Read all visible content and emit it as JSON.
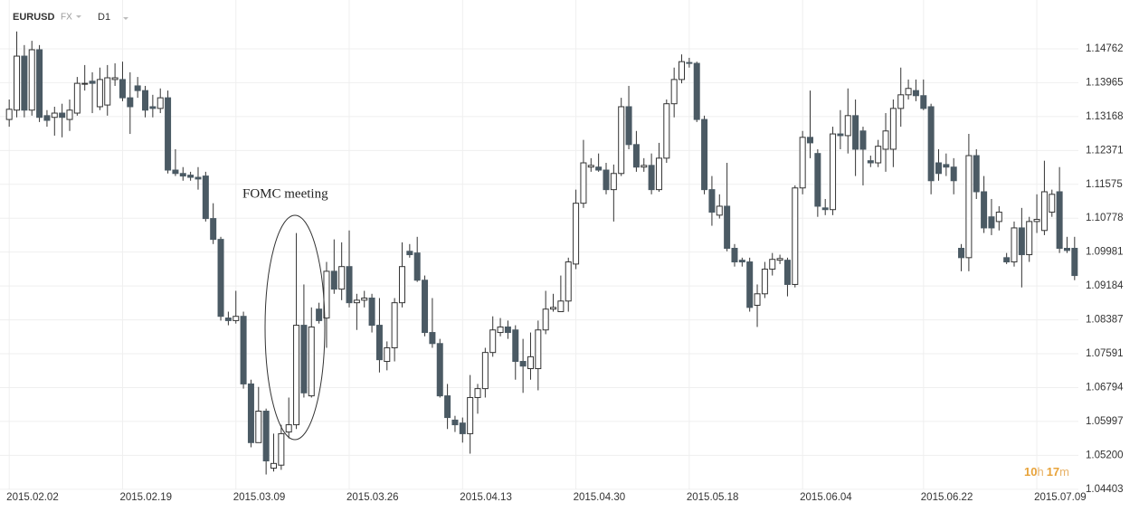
{
  "chart_data": {
    "type": "candlestick",
    "symbol": "EURUSD",
    "market": "FX",
    "timeframe": "D1",
    "annotation": "FOMC meeting",
    "countdown": [
      "10",
      "h",
      "17",
      "m"
    ],
    "up_color": "#ffffff",
    "down_color": "#4b5a64",
    "wick_color": "#333333",
    "grid": true,
    "ylim": [
      1.044,
      1.1591
    ],
    "yticks": [
      1.04403,
      {
        "value": 1.052,
        "label": "1.05200"
      },
      1.05997,
      1.06794,
      1.07591,
      1.08387,
      1.09184,
      1.09981,
      1.10778,
      1.11575,
      1.12371,
      1.13168,
      1.13965,
      1.14762
    ],
    "categories": [
      "2015.02.02",
      null,
      null,
      null,
      null,
      null,
      null,
      null,
      null,
      null,
      null,
      null,
      null,
      null,
      null,
      "2015.02.19",
      null,
      null,
      null,
      null,
      null,
      null,
      null,
      null,
      null,
      null,
      null,
      null,
      null,
      null,
      "2015.03.09",
      null,
      null,
      null,
      null,
      null,
      null,
      null,
      null,
      null,
      null,
      null,
      null,
      null,
      null,
      "2015.03.26",
      null,
      null,
      null,
      null,
      null,
      null,
      null,
      null,
      null,
      null,
      null,
      null,
      null,
      null,
      "2015.04.13",
      null,
      null,
      null,
      null,
      null,
      null,
      null,
      null,
      null,
      null,
      null,
      null,
      null,
      null,
      "2015.04.30",
      null,
      null,
      null,
      null,
      null,
      null,
      null,
      null,
      null,
      null,
      null,
      null,
      null,
      null,
      "2015.05.18",
      null,
      null,
      null,
      null,
      null,
      null,
      null,
      null,
      null,
      null,
      null,
      null,
      null,
      null,
      "2015.06.04",
      null,
      null,
      null,
      null,
      null,
      null,
      null,
      null,
      null,
      null,
      null,
      null,
      null,
      null,
      null,
      "2015.06.22",
      null,
      null,
      null,
      null,
      null,
      null,
      null,
      null,
      null,
      null,
      null,
      null,
      null,
      null,
      "2015.07.09",
      null,
      null,
      null,
      null,
      null
    ],
    "open": [
      1.131,
      1.1332,
      1.1459,
      1.1332,
      1.1474,
      1.1319,
      1.1315,
      1.1325,
      1.131,
      1.1325,
      1.1393,
      1.14,
      1.134,
      1.1344,
      1.1404,
      1.1404,
      1.1361,
      1.1389,
      1.1378,
      1.134,
      1.1336,
      1.1361,
      1.1191,
      1.1183,
      1.1179,
      1.1174,
      1.1177,
      1.1077,
      1.1028,
      1.0843,
      1.0837,
      1.0847,
      1.0688,
      1.055,
      1.0624,
      1.049,
      1.0497,
      1.0575,
      1.0592,
      1.0826,
      1.066,
      1.0864,
      1.0843,
      1.0953,
      1.0911,
      1.0964,
      1.0879,
      1.0885,
      1.089,
      1.0826,
      1.0741,
      1.0773,
      1.0879,
      1.1,
      1.0996,
      1.0932,
      1.0809,
      1.0783,
      1.066,
      1.0603,
      1.0596,
      1.0571,
      1.0656,
      1.0677,
      1.0762,
      1.0809,
      1.0822,
      1.0815,
      1.0741,
      1.0724,
      1.0724,
      1.0815,
      1.0864,
      1.0858,
      1.0883,
      1.097,
      1.1113,
      1.1198,
      1.1198,
      1.1191,
      1.1145,
      1.1183,
      1.134,
      1.1251,
      1.1198,
      1.1202,
      1.1145,
      1.1219,
      1.1347,
      1.1404,
      1.1444,
      1.1442,
      1.131,
      1.1145,
      1.1085,
      1.1106,
      1.1007,
      1.0979,
      1.0975,
      1.0873,
      1.09,
      1.0958,
      1.0979,
      1.0979,
      1.0922,
      1.1149,
      1.1268,
      1.123,
      1.1102,
      1.1098,
      1.1276,
      1.1272,
      1.1319,
      1.1283,
      1.1213,
      1.1208,
      1.124,
      1.124,
      1.1336,
      1.1368,
      1.1378,
      1.1366,
      1.134,
      1.1208,
      1.1204,
      1.1198,
      1.1007,
      1.0985,
      1.1225,
      1.114,
      1.1081,
      1.107,
      1.0985,
      1.0975,
      1.1055,
      1.0992,
      1.107,
      1.1049,
      1.1092,
      1.114,
      1.1007,
      1.1007
    ],
    "high": [
      1.1357,
      1.1517,
      1.1485,
      1.1495,
      1.1485,
      1.1332,
      1.134,
      1.1347,
      1.1357,
      1.141,
      1.1438,
      1.1421,
      1.1432,
      1.1438,
      1.1442,
      1.1446,
      1.1421,
      1.141,
      1.1389,
      1.1368,
      1.1383,
      1.1378,
      1.124,
      1.1198,
      1.1187,
      1.1198,
      1.1187,
      1.1113,
      1.1034,
      1.0858,
      1.0907,
      1.0858,
      1.0698,
      1.0681,
      1.063,
      1.0571,
      1.0592,
      1.0656,
      1.1043,
      1.0922,
      1.0868,
      1.0879,
      1.0975,
      1.1028,
      1.1021,
      1.1049,
      1.09,
      1.0907,
      1.09,
      1.089,
      1.0788,
      1.089,
      1.1021,
      1.1017,
      1.1034,
      1.0943,
      1.089,
      1.0794,
      1.0688,
      1.0613,
      1.0609,
      1.0709,
      1.0688,
      1.0773,
      1.0847,
      1.0843,
      1.0837,
      1.0826,
      1.0794,
      1.0809,
      1.0837,
      1.0907,
      1.09,
      1.0943,
      1.0985,
      1.1145,
      1.1262,
      1.1219,
      1.123,
      1.1208,
      1.1204,
      1.1361,
      1.1389,
      1.1283,
      1.1219,
      1.123,
      1.1255,
      1.1357,
      1.1432,
      1.1463,
      1.1455,
      1.1446,
      1.1319,
      1.1177,
      1.1134,
      1.1208,
      1.1017,
      1.0985,
      1.0985,
      1.0922,
      1.0975,
      1.0996,
      1.0992,
      1.0985,
      1.1155,
      1.1283,
      1.1378,
      1.124,
      1.1123,
      1.1293,
      1.1332,
      1.1383,
      1.1357,
      1.1293,
      1.1225,
      1.1262,
      1.1325,
      1.1357,
      1.1432,
      1.1404,
      1.1404,
      1.1404,
      1.1347,
      1.124,
      1.123,
      1.1219,
      1.1017,
      1.1276,
      1.124,
      1.1177,
      1.1123,
      1.1106,
      1.0996,
      1.107,
      1.1102,
      1.1081,
      1.1134,
      1.1213,
      1.1145,
      1.1198,
      1.1034,
      1.1034
    ],
    "low": [
      1.1293,
      1.1315,
      1.1315,
      1.1319,
      1.1304,
      1.1293,
      1.1272,
      1.1268,
      1.1283,
      1.1319,
      1.1378,
      1.1325,
      1.1332,
      1.1319,
      1.1389,
      1.1353,
      1.1276,
      1.1361,
      1.1315,
      1.1315,
      1.1325,
      1.1183,
      1.1177,
      1.1166,
      1.1166,
      1.1145,
      1.107,
      1.1017,
      1.0837,
      1.0826,
      1.083,
      1.0677,
      1.0539,
      1.055,
      1.0475,
      1.0482,
      1.0486,
      1.056,
      1.0582,
      1.0656,
      1.0656,
      1.083,
      1.0773,
      1.09,
      1.0885,
      1.0868,
      1.0815,
      1.0868,
      1.0809,
      1.0715,
      1.072,
      1.0741,
      1.0868,
      1.0985,
      1.0928,
      1.08,
      1.0773,
      1.0656,
      1.0582,
      1.0575,
      1.055,
      1.0524,
      1.0618,
      1.0656,
      1.0752,
      1.08,
      1.0794,
      1.0698,
      1.0667,
      1.0698,
      1.0673,
      1.0805,
      1.0858,
      1.0858,
      1.0858,
      1.0958,
      1.1102,
      1.1187,
      1.1187,
      1.1134,
      1.107,
      1.1177,
      1.124,
      1.1187,
      1.1187,
      1.1134,
      1.114,
      1.1208,
      1.1315,
      1.1395,
      1.1432,
      1.1304,
      1.1134,
      1.106,
      1.1077,
      1.1,
      1.0964,
      1.0964,
      1.0858,
      1.0822,
      1.089,
      1.0943,
      1.097,
      1.0894,
      1.0915,
      1.1134,
      1.1219,
      1.1081,
      1.1085,
      1.1085,
      1.124,
      1.123,
      1.1177,
      1.1155,
      1.1198,
      1.1198,
      1.1187,
      1.1198,
      1.1293,
      1.1357,
      1.1353,
      1.1332,
      1.1134,
      1.1166,
      1.1177,
      1.1134,
      1.0953,
      1.0953,
      1.1123,
      1.1043,
      1.1038,
      1.1049,
      1.097,
      1.0964,
      1.0915,
      1.0975,
      1.1043,
      1.1038,
      1.1081,
      1.0996,
      1.0996,
      1.0932
    ],
    "close": [
      1.1334,
      1.1459,
      1.1332,
      1.1474,
      1.1315,
      1.1308,
      1.1325,
      1.1315,
      1.1332,
      1.1395,
      1.1395,
      1.1395,
      1.1404,
      1.1408,
      1.1408,
      1.1361,
      1.134,
      1.1378,
      1.1332,
      1.1336,
      1.1361,
      1.1191,
      1.1183,
      1.1177,
      1.1174,
      1.117,
      1.1077,
      1.1028,
      1.0847,
      1.0837,
      1.0847,
      1.0688,
      1.055,
      1.0624,
      1.0507,
      1.0501,
      1.0571,
      1.0592,
      1.0826,
      1.0667,
      1.0822,
      1.0837,
      1.0953,
      1.0911,
      1.0964,
      1.0879,
      1.0885,
      1.089,
      1.0826,
      1.0745,
      1.0773,
      1.0879,
      1.0964,
      1.0992,
      1.0932,
      1.0809,
      1.0783,
      1.066,
      1.0609,
      1.0592,
      1.0571,
      1.0656,
      1.0677,
      1.0762,
      1.0815,
      1.0822,
      1.0809,
      1.0741,
      1.073,
      1.0752,
      1.0815,
      1.0864,
      1.0868,
      1.0883,
      1.0975,
      1.1113,
      1.1208,
      1.1202,
      1.1191,
      1.1145,
      1.1183,
      1.134,
      1.1251,
      1.1198,
      1.1202,
      1.1145,
      1.1219,
      1.1347,
      1.1404,
      1.1446,
      1.1442,
      1.131,
      1.1145,
      1.1092,
      1.1106,
      1.1007,
      1.0975,
      1.0975,
      1.0868,
      1.09,
      1.0958,
      1.0981,
      1.0983,
      1.0922,
      1.1149,
      1.1268,
      1.1255,
      1.1106,
      1.1098,
      1.1276,
      1.1272,
      1.1319,
      1.124,
      1.124,
      1.1208,
      1.1247,
      1.1283,
      1.1336,
      1.1368,
      1.1383,
      1.1366,
      1.1336,
      1.1166,
      1.1183,
      1.1198,
      1.1166,
      1.0985,
      1.1225,
      1.114,
      1.1055,
      1.1055,
      1.1092,
      1.0975,
      1.1055,
      1.0992,
      1.107,
      1.1075,
      1.114,
      1.1134,
      1.1007,
      1.1002,
      1.0943
    ]
  }
}
